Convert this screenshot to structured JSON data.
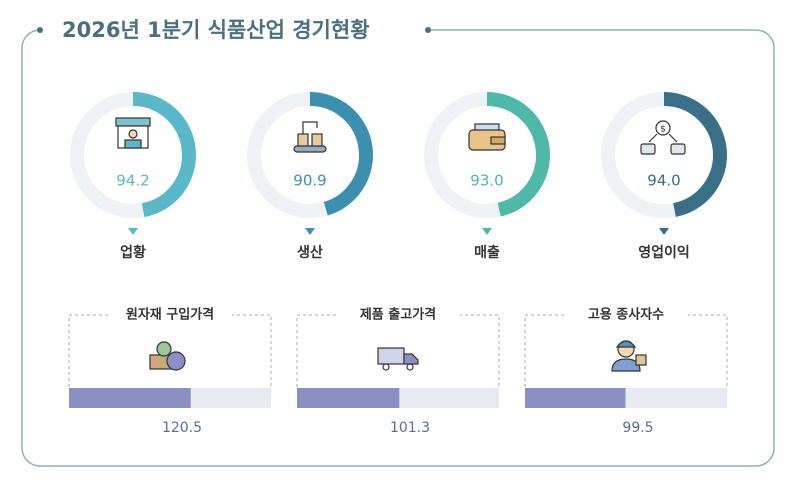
{
  "chart_data": [
    {
      "type": "donut",
      "title": "2026년 1분기 식품산업 경기현황",
      "categories": [
        "업황",
        "생산",
        "매출",
        "영업이익"
      ],
      "values": [
        94.2,
        90.9,
        93.0,
        94.0
      ],
      "value_labels": [
        "94.2",
        "90.9",
        "93.0",
        "94.0"
      ],
      "colors": [
        "#5bb8c9",
        "#3d8fb0",
        "#4fb8a8",
        "#3a6f88"
      ],
      "ylim": [
        0,
        200
      ]
    },
    {
      "type": "bar",
      "categories": [
        "원자재 구입가격",
        "제품 출고가격",
        "고용 종사자수"
      ],
      "values": [
        120.5,
        101.3,
        99.5
      ],
      "value_labels": [
        "120.5",
        "101.3",
        "99.5"
      ],
      "color": "#8a8fc4",
      "xlim": [
        0,
        200
      ]
    }
  ]
}
